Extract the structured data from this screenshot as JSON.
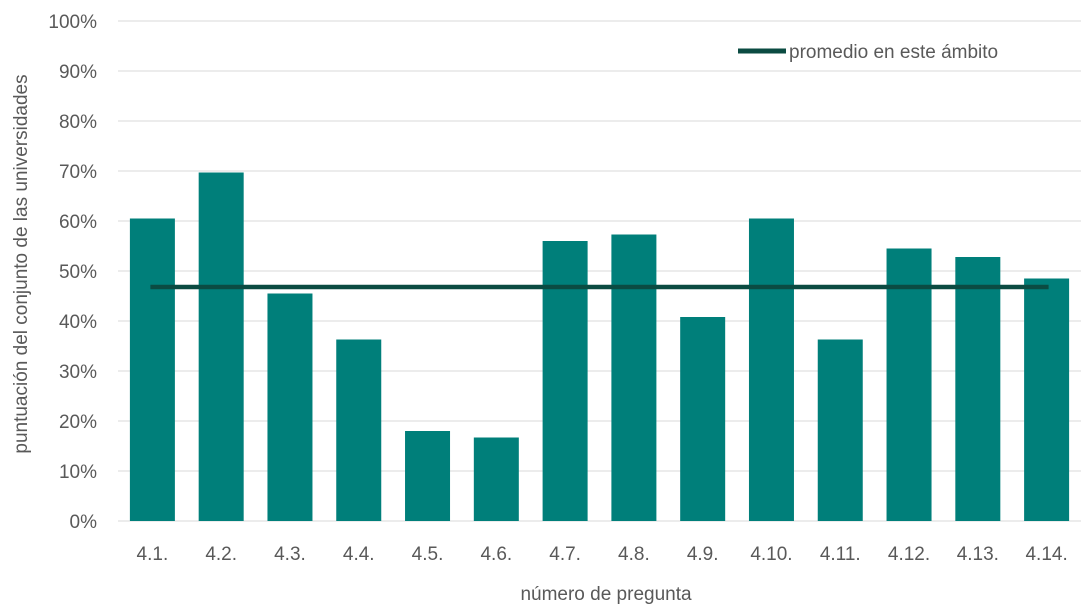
{
  "chart_data": {
    "type": "bar",
    "categories": [
      "4.1.",
      "4.2.",
      "4.3.",
      "4.4.",
      "4.5.",
      "4.6.",
      "4.7.",
      "4.8.",
      "4.9.",
      "4.10.",
      "4.11.",
      "4.12.",
      "4.13.",
      "4.14."
    ],
    "values": [
      60.5,
      69.7,
      45.5,
      36.3,
      18.0,
      16.7,
      56.0,
      57.3,
      40.8,
      60.5,
      36.3,
      54.5,
      52.8,
      48.5
    ],
    "reference_line": {
      "name": "promedio en este ámbito",
      "value": 46.8,
      "color": "#0b4b42"
    },
    "bar_color": "#007f7a",
    "xlabel": "número de pregunta",
    "ylabel": "puntuación del conjunto de las universidades",
    "ylim": [
      0,
      100
    ],
    "yticks": [
      "0%",
      "10%",
      "20%",
      "30%",
      "40%",
      "50%",
      "60%",
      "70%",
      "80%",
      "90%",
      "100%"
    ],
    "grid": true,
    "legend_position": "top-right"
  }
}
